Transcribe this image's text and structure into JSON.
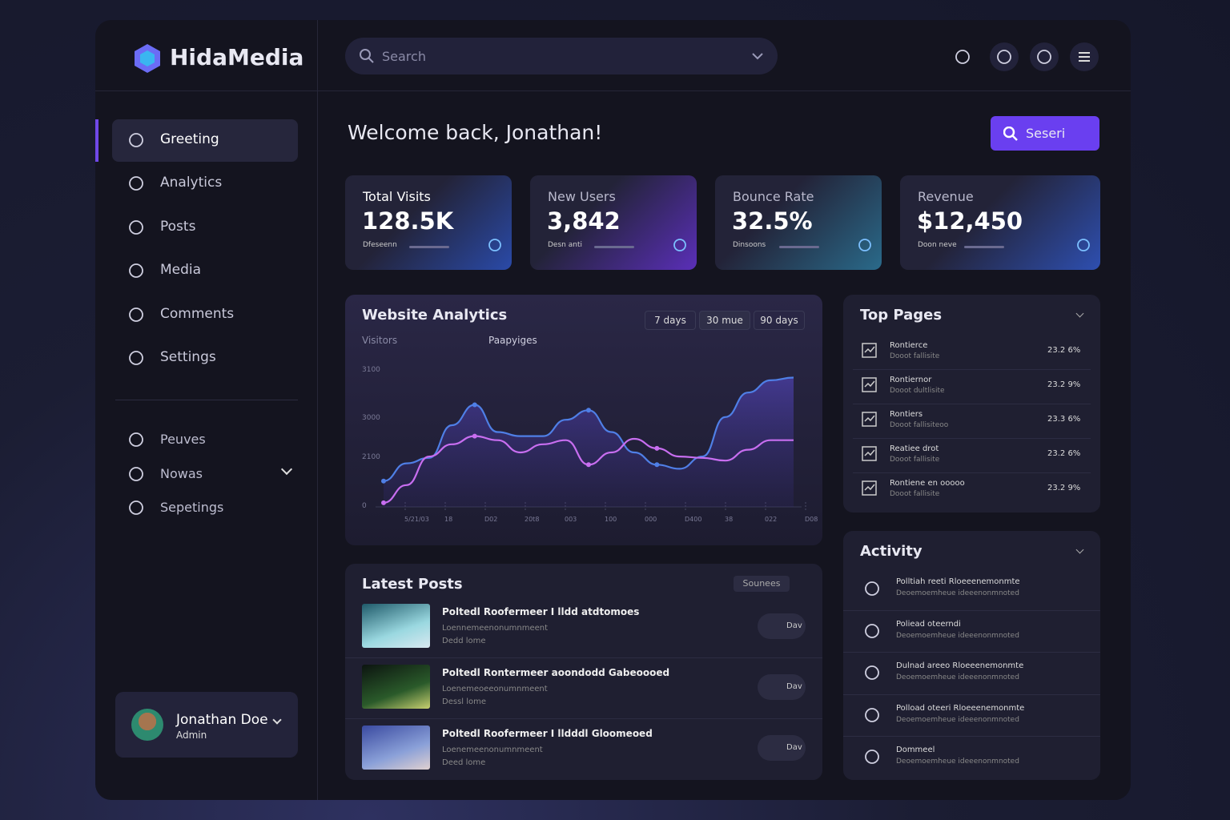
{
  "brand": "HidaMedia",
  "search": "Search",
  "nav": [
    "Greeting",
    "Analytics",
    "Posts",
    "Media",
    "Comments",
    "Settings"
  ],
  "nav_secondary": [
    "Peuves",
    "Nowas",
    "Sepetings"
  ],
  "user": {
    "name": "Jonathan Doe",
    "role": "Admin"
  },
  "welcome": "Welcome back, Jonathan!",
  "action_button": "Seseri",
  "stats": [
    {
      "label": "Total Visits",
      "value": "128.5K",
      "note": "Dfeseenn"
    },
    {
      "label": "New Users",
      "value": "3,842",
      "note": "Desn anti"
    },
    {
      "label": "Bounce Rate",
      "value": "32.5%",
      "note": "Dinsoons"
    },
    {
      "label": "Revenue",
      "value": "$12,450",
      "note": "Doon neve"
    }
  ],
  "analytics": {
    "title": "Website Analytics",
    "ranges": [
      "7 days",
      "30 mue",
      "90 days"
    ],
    "ytick_labels": [
      "3100",
      "3000",
      "2100",
      "0"
    ],
    "x_labels": [
      "5/21/03",
      "18",
      "D02",
      "20t8",
      "003",
      "100",
      "000",
      "D400",
      "38",
      "022",
      "D08"
    ],
    "ylim": [
      0,
      100
    ],
    "series": [
      {
        "name": "Visitors",
        "color": "#4f7fe6",
        "values": [
          19,
          32,
          36,
          60,
          75,
          55,
          52,
          52,
          64,
          71,
          55,
          40,
          31,
          28,
          37,
          66,
          84,
          93,
          95
        ]
      },
      {
        "name": "Paapyiges",
        "color": "#c86ef0",
        "values": [
          3,
          16,
          37,
          46,
          52,
          49,
          40,
          46,
          49,
          31,
          40,
          50,
          43,
          37,
          36,
          34,
          42,
          49,
          49
        ]
      }
    ]
  },
  "top_pages": {
    "title": "Top Pages",
    "rows": [
      {
        "title": "Rontierce",
        "subtitle": "Dooot fallisite",
        "value": "23.2 6%"
      },
      {
        "title": "Rontiernor",
        "subtitle": "Dooot dultlisite",
        "value": "23.2 9%"
      },
      {
        "title": "Rontiers",
        "subtitle": "Dooot fallisiteoo",
        "value": "23.3 6%"
      },
      {
        "title": "Reatiee drot",
        "subtitle": "Dooot fallisite",
        "value": "23.2 6%"
      },
      {
        "title": "Rontiene en ooooo",
        "subtitle": "Dooot fallisite",
        "value": "23.2 9%"
      }
    ]
  },
  "latest_posts": {
    "title": "Latest Posts",
    "more": "Sounees",
    "rows": [
      {
        "title": "Poltedl Roofermeer I lldd atdtomoes",
        "subtitle": "Loennemeenonumnmeent",
        "meta": "Dedd lome",
        "action": "Dav"
      },
      {
        "title": "Poltedl Rontermeer aoondodd Gabeoooed",
        "subtitle": "Loenemeoeeonumnmeent",
        "meta": "Dessl lome",
        "action": "Dav"
      },
      {
        "title": "Poltedl Roofermeer I lldddl Gloomeoed",
        "subtitle": "Loenemeenonumnmeent",
        "meta": "Deed lome",
        "action": "Dav"
      }
    ]
  },
  "activity": {
    "title": "Activity",
    "rows": [
      {
        "title": "Polltiah reeti Rloeeenemonmte",
        "subtitle": "Deoemoemheue ideeenonmnoted"
      },
      {
        "title": "Poliead oteerndi",
        "subtitle": "Deoemoemheue ideeenonmnoted"
      },
      {
        "title": "Dulnad areeo Rloeeenemonmte",
        "subtitle": "Deoemoemheue ideeenonmnoted"
      },
      {
        "title": "Polload oteeri Rloeeenemonmte",
        "subtitle": "Deoemoemheue ideeenonmnoted"
      },
      {
        "title": "Dommeel",
        "subtitle": "Deoemoemheue ideeenonmnoted"
      }
    ]
  }
}
